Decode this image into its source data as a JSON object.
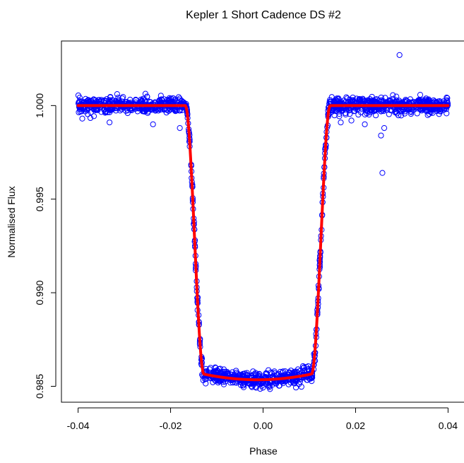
{
  "chart_data": {
    "type": "scatter",
    "title": "Kepler 1 Short Cadence DS #2",
    "xlabel": "Phase",
    "ylabel": "Normalised Flux",
    "xlim": [
      -0.0436,
      0.0436
    ],
    "ylim": [
      0.98415,
      1.00345
    ],
    "x_ticks": [
      -0.04,
      -0.02,
      0.0,
      0.02,
      0.04
    ],
    "x_tick_labels": [
      "-0.04",
      "-0.02",
      "0.00",
      "0.02",
      "0.04"
    ],
    "y_ticks": [
      0.985,
      0.99,
      0.995,
      1.0
    ],
    "y_tick_labels": [
      "0.985",
      "0.990",
      "0.995",
      "1.000"
    ],
    "grid": false,
    "legend": "none",
    "series": [
      {
        "kind": "points",
        "color": "#0000ff",
        "marker": "open-circle",
        "x_range": [
          -0.04,
          0.04
        ],
        "baseline": 1.0,
        "scatter": 0.0002,
        "outliers": [
          {
            "x": 0.0295,
            "y": 1.0027
          },
          {
            "x": 0.0255,
            "y": 0.9984
          },
          {
            "x": 0.0262,
            "y": 0.9988
          },
          {
            "x": 0.0258,
            "y": 0.9964
          },
          {
            "x": -0.0332,
            "y": 0.9991
          },
          {
            "x": -0.018,
            "y": 0.9988
          },
          {
            "x": -0.0238,
            "y": 0.999
          },
          {
            "x": 0.022,
            "y": 0.999
          },
          {
            "x": 0.0168,
            "y": 0.9991
          },
          {
            "x": 0.0191,
            "y": 0.9992
          }
        ]
      },
      {
        "kind": "model",
        "color": "#ff0000",
        "line_width": 4,
        "contact_points": [
          -0.0168,
          -0.0128,
          0.0105,
          0.0145
        ],
        "center": -0.0012,
        "min_flux": 0.98535,
        "baseline": 1.0,
        "curvature": 1.05
      }
    ]
  }
}
